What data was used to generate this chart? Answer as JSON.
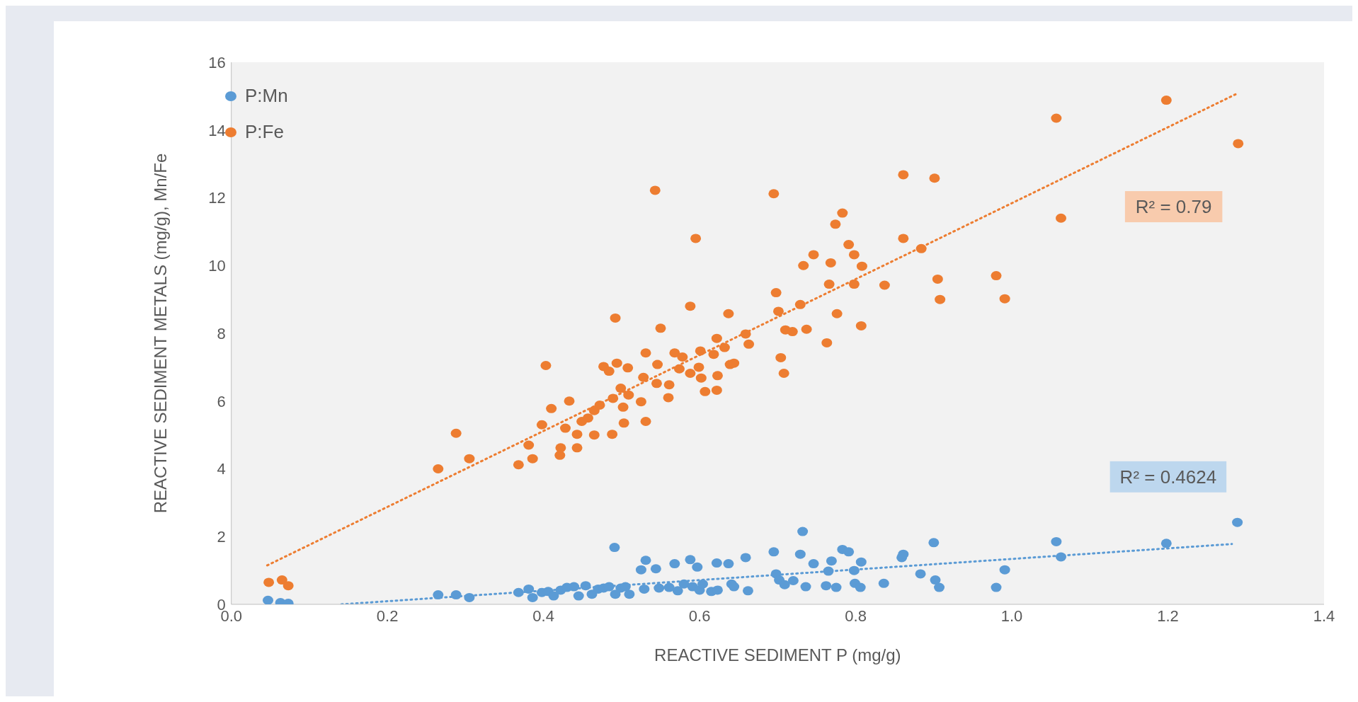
{
  "chart_data": {
    "type": "scatter",
    "xlabel": "REACTIVE SEDIMENT P (mg/g)",
    "ylabel": "REACTIVE SEDIMENT METALS (mg/g), Mn/Fe",
    "xlim": [
      0,
      1.4
    ],
    "xticks": [
      {
        "value": 0,
        "label": "0.0"
      },
      {
        "value": 0.2,
        "label": "0.2"
      },
      {
        "value": 0.4,
        "label": "0.4"
      },
      {
        "value": 0.6,
        "label": "0.6"
      },
      {
        "value": 0.8,
        "label": "0.8"
      },
      {
        "value": 1,
        "label": "1.0"
      },
      {
        "value": 1.2,
        "label": "1.2"
      },
      {
        "value": 1.4,
        "label": "1.4"
      }
    ],
    "ylim": [
      0,
      16
    ],
    "yticks": [
      0,
      2,
      4,
      6,
      8,
      10,
      12,
      14,
      16
    ],
    "grid": false,
    "legend": "top left",
    "marker": "circle",
    "series": [
      {
        "name": "P:Mn",
        "color": "#5b9bd5",
        "x": [
          0.047,
          0.063,
          0.073,
          0.265,
          0.288,
          0.305,
          0.368,
          0.381,
          0.386,
          0.398,
          0.406,
          0.413,
          0.422,
          0.43,
          0.439,
          0.445,
          0.454,
          0.462,
          0.47,
          0.477,
          0.484,
          0.491,
          0.492,
          0.499,
          0.505,
          0.51,
          0.525,
          0.529,
          0.531,
          0.544,
          0.548,
          0.561,
          0.568,
          0.572,
          0.58,
          0.588,
          0.591,
          0.597,
          0.6,
          0.604,
          0.615,
          0.622,
          0.623,
          0.637,
          0.641,
          0.644,
          0.659,
          0.662,
          0.695,
          0.698,
          0.702,
          0.709,
          0.72,
          0.729,
          0.732,
          0.736,
          0.746,
          0.762,
          0.765,
          0.769,
          0.775,
          0.783,
          0.791,
          0.798,
          0.799,
          0.806,
          0.807,
          0.836,
          0.859,
          0.861,
          0.883,
          0.9,
          0.902,
          0.907,
          0.98,
          0.991,
          1.057,
          1.063,
          1.198,
          1.289
        ],
        "values": [
          0.12,
          0.05,
          0.03,
          0.28,
          0.28,
          0.2,
          0.35,
          0.45,
          0.2,
          0.35,
          0.38,
          0.25,
          0.42,
          0.5,
          0.52,
          0.25,
          0.55,
          0.3,
          0.45,
          0.48,
          0.52,
          1.68,
          0.3,
          0.48,
          0.52,
          0.3,
          1.02,
          0.45,
          1.3,
          1.05,
          0.48,
          0.5,
          1.2,
          0.4,
          0.6,
          1.32,
          0.52,
          1.1,
          0.42,
          0.6,
          0.38,
          1.22,
          0.42,
          1.2,
          0.6,
          0.52,
          1.38,
          0.4,
          1.55,
          0.9,
          0.72,
          0.58,
          0.7,
          1.48,
          2.15,
          0.52,
          1.2,
          0.55,
          0.98,
          1.28,
          0.5,
          1.62,
          1.55,
          1.0,
          0.62,
          0.5,
          1.25,
          0.62,
          1.38,
          1.48,
          0.9,
          1.82,
          0.72,
          0.5,
          0.5,
          1.02,
          1.85,
          1.4,
          1.8,
          2.42
        ]
      },
      {
        "name": "P:Fe",
        "color": "#ed7d31",
        "x": [
          0.048,
          0.065,
          0.073,
          0.265,
          0.288,
          0.305,
          0.368,
          0.381,
          0.386,
          0.398,
          0.403,
          0.41,
          0.421,
          0.422,
          0.428,
          0.433,
          0.443,
          0.443,
          0.449,
          0.457,
          0.465,
          0.465,
          0.472,
          0.477,
          0.484,
          0.488,
          0.489,
          0.492,
          0.494,
          0.499,
          0.502,
          0.503,
          0.508,
          0.509,
          0.525,
          0.528,
          0.531,
          0.531,
          0.543,
          0.545,
          0.546,
          0.55,
          0.56,
          0.561,
          0.568,
          0.574,
          0.578,
          0.588,
          0.588,
          0.595,
          0.599,
          0.601,
          0.602,
          0.607,
          0.618,
          0.622,
          0.622,
          0.623,
          0.632,
          0.637,
          0.639,
          0.644,
          0.659,
          0.663,
          0.695,
          0.698,
          0.701,
          0.704,
          0.708,
          0.71,
          0.719,
          0.729,
          0.733,
          0.737,
          0.746,
          0.763,
          0.766,
          0.768,
          0.774,
          0.776,
          0.783,
          0.791,
          0.798,
          0.798,
          0.807,
          0.808,
          0.837,
          0.861,
          0.861,
          0.884,
          0.901,
          0.905,
          0.908,
          0.98,
          0.991,
          1.057,
          1.063,
          1.198,
          1.29
        ],
        "values": [
          0.65,
          0.72,
          0.55,
          4.0,
          5.05,
          4.3,
          4.12,
          4.7,
          4.3,
          5.3,
          7.05,
          5.78,
          4.4,
          4.62,
          5.2,
          6.0,
          5.02,
          4.62,
          5.4,
          5.5,
          5.0,
          5.72,
          5.88,
          7.02,
          6.88,
          5.02,
          6.08,
          8.45,
          7.12,
          6.38,
          5.82,
          5.35,
          6.98,
          6.18,
          5.98,
          6.7,
          7.42,
          5.4,
          12.22,
          6.52,
          7.08,
          8.15,
          6.1,
          6.48,
          7.42,
          6.95,
          7.3,
          8.8,
          6.82,
          10.8,
          7.0,
          7.48,
          6.68,
          6.28,
          7.38,
          7.85,
          6.32,
          6.75,
          7.58,
          8.58,
          7.08,
          7.12,
          7.98,
          7.68,
          12.12,
          9.2,
          8.65,
          7.28,
          6.82,
          8.1,
          8.05,
          8.85,
          10.0,
          8.12,
          10.32,
          7.72,
          9.45,
          10.08,
          11.22,
          8.58,
          11.55,
          10.62,
          10.32,
          9.45,
          8.22,
          9.98,
          9.42,
          12.68,
          10.8,
          10.5,
          12.58,
          9.6,
          9.0,
          9.7,
          9.02,
          14.35,
          11.4,
          14.88,
          13.6
        ]
      },
      {
        "type": "line",
        "color": "#ed7d31",
        "line_style": "dotted",
        "marker": "none",
        "x": [
          0.046,
          1.289
        ],
        "values": [
          1.15,
          15.08
        ]
      },
      {
        "type": "line",
        "color": "#5b9bd5",
        "line_style": "dotted",
        "marker": "none",
        "x": [
          0.141,
          1.282
        ],
        "values": [
          0,
          1.78
        ]
      }
    ],
    "annotations": [
      "R² = 0.79",
      "R² = 0.4624"
    ]
  }
}
